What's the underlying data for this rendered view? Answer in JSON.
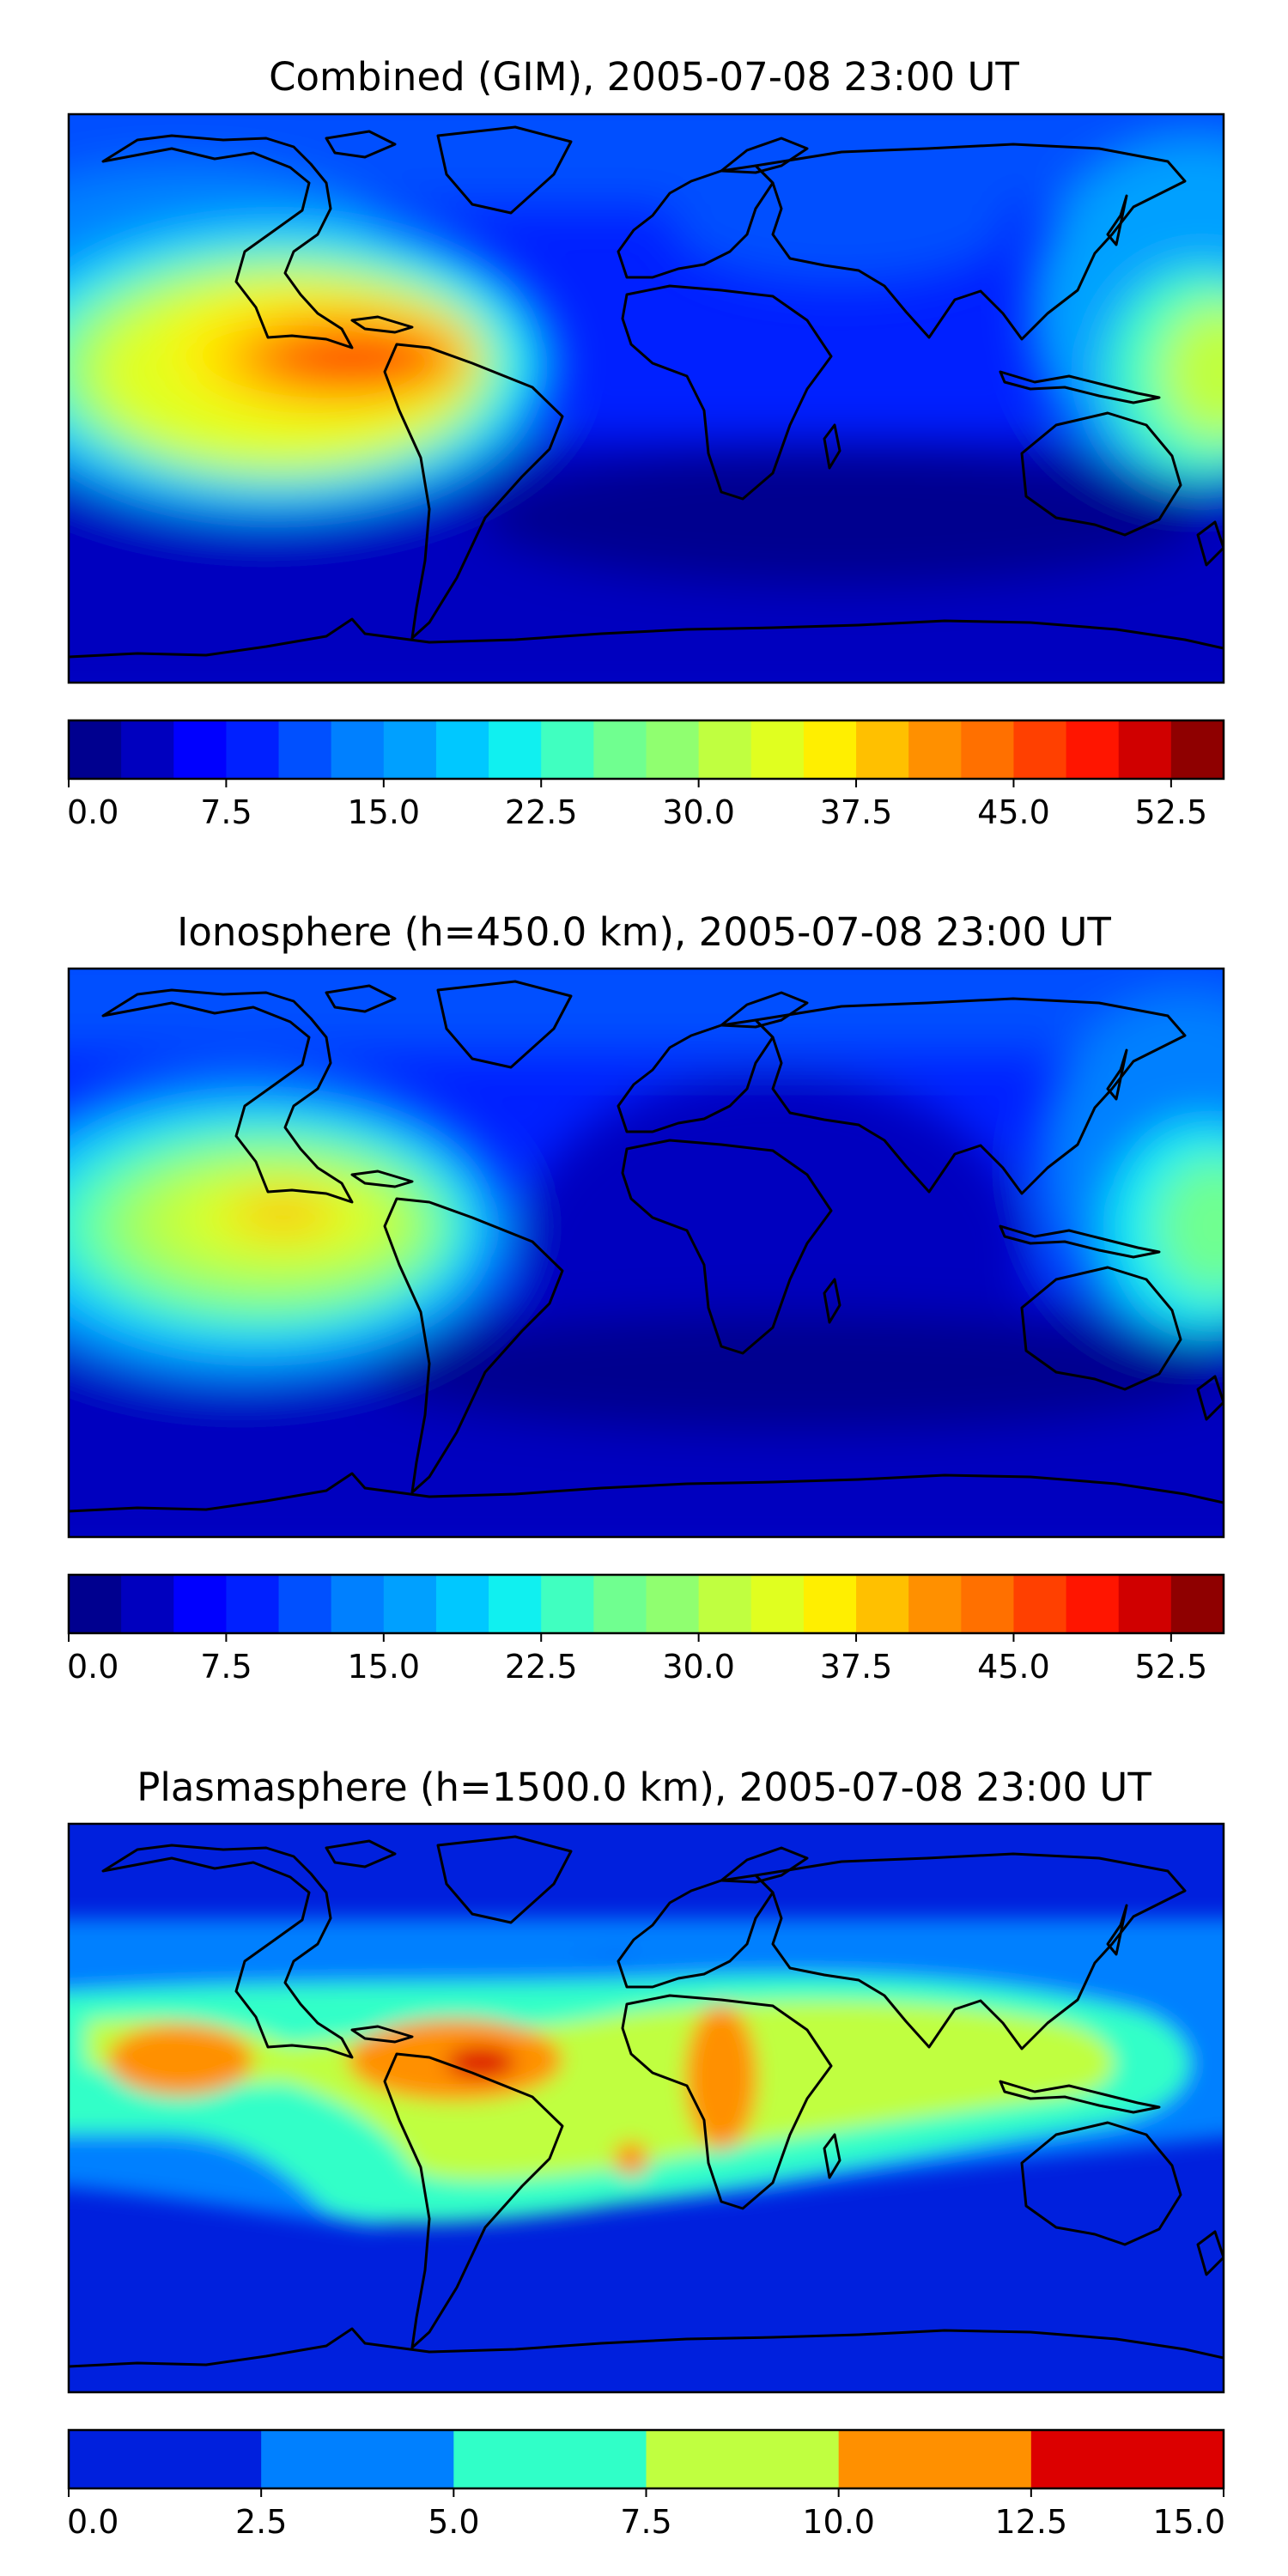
{
  "chart_data": [
    {
      "type": "heatmap",
      "title": "Combined (GIM), 2005-07-08 23:00 UT",
      "xlabel": "",
      "ylabel": "",
      "colorbar": {
        "range": [
          0,
          55
        ],
        "levels": [
          0,
          2.5,
          5,
          7.5,
          10,
          12.5,
          15,
          17.5,
          20,
          22.5,
          25,
          27.5,
          30,
          32.5,
          35,
          37.5,
          40,
          42.5,
          45,
          47.5,
          50,
          52.5,
          55
        ],
        "tick_values": [
          0,
          7.5,
          15,
          22.5,
          30,
          37.5,
          45,
          52.5
        ],
        "tick_labels": [
          "0.0",
          "7.5",
          "15.0",
          "22.5",
          "30.0",
          "37.5",
          "45.0",
          "52.5"
        ],
        "colors": [
          "#00008f",
          "#0000bf",
          "#0000ff",
          "#0020ff",
          "#0050ff",
          "#0080ff",
          "#00a0ff",
          "#00c8ff",
          "#10f0f0",
          "#40ffc0",
          "#70ff90",
          "#90ff70",
          "#c0ff40",
          "#e0ff20",
          "#ffef00",
          "#ffc000",
          "#ff9000",
          "#ff7000",
          "#ff4000",
          "#ff1500",
          "#d00000",
          "#8f0000"
        ]
      }
    },
    {
      "type": "heatmap",
      "title": "Ionosphere  (h=450.0 km), 2005-07-08 23:00 UT",
      "xlabel": "",
      "ylabel": "",
      "colorbar": {
        "range": [
          0,
          55
        ],
        "levels": [
          0,
          2.5,
          5,
          7.5,
          10,
          12.5,
          15,
          17.5,
          20,
          22.5,
          25,
          27.5,
          30,
          32.5,
          35,
          37.5,
          40,
          42.5,
          45,
          47.5,
          50,
          52.5,
          55
        ],
        "tick_values": [
          0,
          7.5,
          15,
          22.5,
          30,
          37.5,
          45,
          52.5
        ],
        "tick_labels": [
          "0.0",
          "7.5",
          "15.0",
          "22.5",
          "30.0",
          "37.5",
          "45.0",
          "52.5"
        ],
        "colors": [
          "#00008f",
          "#0000bf",
          "#0000ff",
          "#0020ff",
          "#0050ff",
          "#0080ff",
          "#00a0ff",
          "#00c8ff",
          "#10f0f0",
          "#40ffc0",
          "#70ff90",
          "#90ff70",
          "#c0ff40",
          "#e0ff20",
          "#ffef00",
          "#ffc000",
          "#ff9000",
          "#ff7000",
          "#ff4000",
          "#ff1500",
          "#d00000",
          "#8f0000"
        ]
      }
    },
    {
      "type": "heatmap",
      "title": "Plasmasphere (h=1500.0 km), 2005-07-08 23:00 UT",
      "xlabel": "",
      "ylabel": "",
      "colorbar": {
        "range": [
          0,
          15
        ],
        "levels": [
          0,
          2.5,
          5,
          7.5,
          10,
          12.5,
          15
        ],
        "tick_values": [
          0,
          2.5,
          5,
          7.5,
          10,
          12.5,
          15
        ],
        "tick_labels": [
          "0.0",
          "2.5",
          "5.0",
          "7.5",
          "10.0",
          "12.5",
          "15.0"
        ],
        "colors": [
          "#0020dd",
          "#0080ff",
          "#30ffc8",
          "#c0ff40",
          "#ff9000",
          "#dc0000"
        ]
      }
    }
  ]
}
